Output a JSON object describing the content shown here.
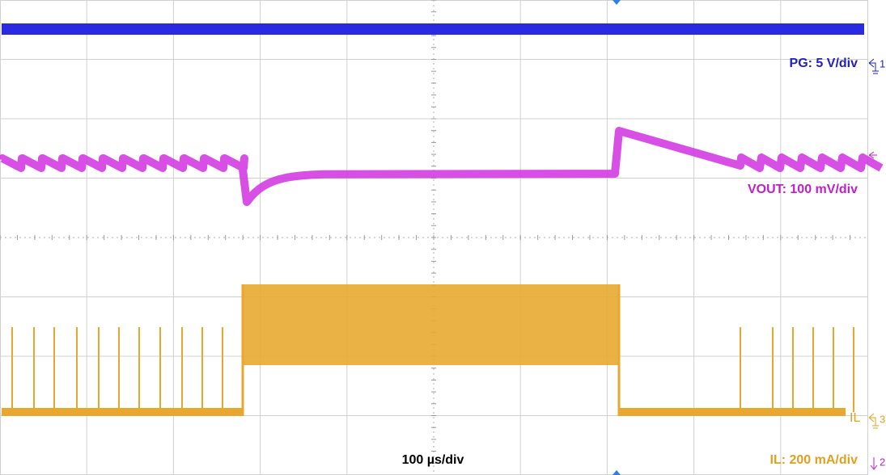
{
  "timebase": "100 µs/div",
  "channels": [
    {
      "label": "PG: 5 V/div",
      "marker": "1"
    },
    {
      "label": "VOUT: 100 mV/div"
    },
    {
      "label": "IL: 200 mA/div",
      "marker": "3",
      "tag": "IL"
    }
  ],
  "marker_2": "2"
}
